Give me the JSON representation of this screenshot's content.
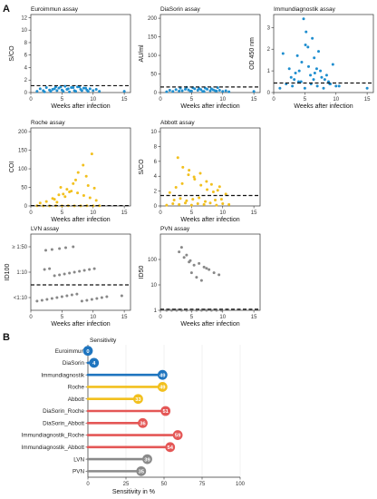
{
  "figure": {
    "panel_a_label": "A",
    "panel_b_label": "B"
  },
  "chart_data": [
    {
      "type": "scatter",
      "title": "Euroimmun assay",
      "xlabel": "Weeks after infection",
      "ylabel": "S/CO",
      "xlim": [
        0,
        16
      ],
      "ylim": [
        0,
        12.5
      ],
      "xticks": [
        0,
        5,
        10,
        15
      ],
      "yticks": [
        0,
        2,
        4,
        6,
        8,
        10,
        12
      ],
      "threshold": 1.1,
      "color": "#1f8ecf",
      "x": [
        1.0,
        1.5,
        2.0,
        2.5,
        3.0,
        3.5,
        4.0,
        4.5,
        5.0,
        5.5,
        6.0,
        6.5,
        7.0,
        7.5,
        8.0,
        8.5,
        9.0,
        9.5,
        10.0,
        10.5,
        11.0,
        2.2,
        3.2,
        4.2,
        5.2,
        6.2,
        7.2,
        8.2,
        9.2,
        4.8,
        6.8,
        8.8,
        3.8,
        5.8,
        7.8,
        15.0
      ],
      "y": [
        0.2,
        0.6,
        0.3,
        0.8,
        0.4,
        0.5,
        0.9,
        0.7,
        0.4,
        1.0,
        0.6,
        0.8,
        0.3,
        0.9,
        0.5,
        0.7,
        0.4,
        0.6,
        0.3,
        0.5,
        0.2,
        0.1,
        0.2,
        0.3,
        0.2,
        0.1,
        0.2,
        0.3,
        0.2,
        0.9,
        0.8,
        0.7,
        0.6,
        0.5,
        0.9,
        0.2
      ]
    },
    {
      "type": "scatter",
      "title": "DiaSorin assay",
      "xlabel": "Weeks after infection",
      "ylabel": "AU/ml",
      "xlim": [
        0,
        16
      ],
      "ylim": [
        0,
        210
      ],
      "xticks": [
        0,
        5,
        10,
        15
      ],
      "yticks": [
        0,
        50,
        100,
        150,
        200
      ],
      "threshold": 15,
      "color": "#1f8ecf",
      "x": [
        1.0,
        1.5,
        2.0,
        2.5,
        3.0,
        3.5,
        4.0,
        4.5,
        5.0,
        5.5,
        6.0,
        6.5,
        7.0,
        7.5,
        8.0,
        8.5,
        9.0,
        9.5,
        10.0,
        10.5,
        11.0,
        3.2,
        4.2,
        5.2,
        6.2,
        7.2,
        8.2,
        9.2,
        4.8,
        6.8,
        8.8,
        15.0
      ],
      "y": [
        2,
        6,
        3,
        8,
        4,
        5,
        9,
        7,
        4,
        10,
        6,
        8,
        3,
        9,
        5,
        7,
        4,
        6,
        3,
        5,
        2,
        12,
        14,
        13,
        11,
        12,
        10,
        13,
        4,
        3,
        5,
        3
      ]
    },
    {
      "type": "scatter",
      "title": "Immundiagnostik assay",
      "xlabel": "Weeks after infection",
      "ylabel": "OD 450 nm",
      "xlim": [
        0,
        16
      ],
      "ylim": [
        0,
        3.6
      ],
      "xticks": [
        0,
        5,
        10,
        15
      ],
      "yticks": [
        0,
        1,
        2,
        3
      ],
      "threshold": 0.44,
      "color": "#1f8ecf",
      "x": [
        1.0,
        2.0,
        3.0,
        4.0,
        5.0,
        6.0,
        7.0,
        8.0,
        9.0,
        10.0,
        1.5,
        2.5,
        3.5,
        4.5,
        5.5,
        6.5,
        7.5,
        8.5,
        9.5,
        4.8,
        5.2,
        6.2,
        3.8,
        7.2,
        2.8,
        5.6,
        6.6,
        8.2,
        4.4,
        5.9,
        7.7,
        9.1,
        3.3,
        6.9,
        8.8,
        5.1,
        4.1,
        6.4,
        10.5,
        15.0
      ],
      "y": [
        0.2,
        0.4,
        0.3,
        0.5,
        0.2,
        0.4,
        0.3,
        0.2,
        0.4,
        0.3,
        1.8,
        1.1,
        0.9,
        1.4,
        2.1,
        1.6,
        1.0,
        0.8,
        1.3,
        3.4,
        2.8,
        2.5,
        1.7,
        1.9,
        0.7,
        1.2,
        0.9,
        0.6,
        0.5,
        0.8,
        0.7,
        0.4,
        0.6,
        1.1,
        0.5,
        2.2,
        1.0,
        0.6,
        0.3,
        0.2
      ]
    },
    {
      "type": "scatter",
      "title": "Roche assay",
      "xlabel": "Weeks after infection",
      "ylabel": "COI",
      "xlim": [
        0,
        16
      ],
      "ylim": [
        0,
        210
      ],
      "xticks": [
        0,
        5,
        10,
        15
      ],
      "yticks": [
        0,
        50,
        100,
        150,
        200
      ],
      "threshold": 1,
      "color": "#f2c01e",
      "x": [
        1.0,
        2.0,
        3.0,
        4.0,
        5.0,
        6.0,
        7.0,
        8.0,
        9.0,
        10.0,
        11.0,
        1.5,
        2.5,
        3.5,
        4.5,
        5.5,
        6.5,
        7.5,
        8.5,
        9.5,
        10.5,
        9.8,
        7.6,
        8.4,
        6.8,
        5.8,
        4.8,
        3.8,
        7.2,
        8.9,
        6.2,
        5.2,
        9.2,
        10.2,
        4.2
      ],
      "y": [
        0.5,
        0.3,
        0.4,
        0.6,
        0.2,
        0.5,
        0.3,
        0.4,
        0.6,
        0.3,
        0.5,
        8,
        12,
        20,
        30,
        25,
        40,
        35,
        28,
        22,
        15,
        140,
        90,
        110,
        60,
        45,
        50,
        18,
        70,
        80,
        38,
        32,
        55,
        48,
        10
      ]
    },
    {
      "type": "scatter",
      "title": "Abbott assay",
      "xlabel": "Weeks after infection",
      "ylabel": "S/CO",
      "xlim": [
        0,
        16
      ],
      "ylim": [
        0,
        10.5
      ],
      "xticks": [
        0,
        5,
        10,
        15
      ],
      "yticks": [
        0,
        2,
        4,
        6,
        8,
        10
      ],
      "threshold": 1.4,
      "color": "#f2c01e",
      "x": [
        1.0,
        2.0,
        3.0,
        4.0,
        5.0,
        6.0,
        7.0,
        8.0,
        9.0,
        10.0,
        11.0,
        1.5,
        2.5,
        3.5,
        4.5,
        5.5,
        6.5,
        7.5,
        8.5,
        9.5,
        10.5,
        2.8,
        3.6,
        4.6,
        5.4,
        6.4,
        7.4,
        8.2,
        9.2,
        2.2,
        3.2,
        4.2,
        5.2,
        6.2,
        7.2,
        8.8,
        9.8
      ],
      "y": [
        0.1,
        0.3,
        0.2,
        0.4,
        0.1,
        0.3,
        0.2,
        0.4,
        0.1,
        0.3,
        0.2,
        1.8,
        2.5,
        3.0,
        4.2,
        3.6,
        2.8,
        2.2,
        1.9,
        2.6,
        1.6,
        6.5,
        5.2,
        4.8,
        3.9,
        4.4,
        3.3,
        2.9,
        2.1,
        0.8,
        1.0,
        0.7,
        0.9,
        1.1,
        0.6,
        0.8,
        0.9
      ]
    },
    {
      "type": "scatter",
      "title": "LVN assay",
      "xlabel": "Weeks after infection",
      "ylabel": "ID100",
      "xlim": [
        0,
        16
      ],
      "categories": [
        "<1:10",
        "1:10",
        "≥ 1:50"
      ],
      "xticks": [
        0,
        5,
        10,
        15
      ],
      "threshold_level": 0.5,
      "color": "#888888",
      "x": [
        1.0,
        1.8,
        2.6,
        3.4,
        4.2,
        5.0,
        5.8,
        6.6,
        7.4,
        8.2,
        9.0,
        9.8,
        10.6,
        11.4,
        12.2,
        14.6,
        2.2,
        3.0,
        3.8,
        4.6,
        5.4,
        6.2,
        7.0,
        7.8,
        8.6,
        9.4,
        10.2,
        2.4,
        3.4,
        4.6,
        5.6,
        6.8
      ],
      "level": [
        0,
        0,
        0,
        0,
        0,
        0,
        0,
        0,
        0,
        0,
        0,
        0,
        0,
        0,
        0,
        0,
        1,
        1,
        1,
        1,
        1,
        1,
        1,
        1,
        1,
        1,
        1,
        2,
        2,
        2,
        2,
        2
      ]
    },
    {
      "type": "scatter",
      "title": "PVN assay",
      "xlabel": "Weeks after infection",
      "ylabel": "ID50",
      "xlim": [
        0,
        16
      ],
      "yscale": "log",
      "ylim": [
        1,
        1000
      ],
      "yticks": [
        1,
        10,
        100
      ],
      "xticks": [
        0,
        5,
        10,
        15
      ],
      "threshold": 1.1,
      "color": "#888888",
      "x": [
        1.0,
        1.8,
        2.6,
        3.4,
        4.2,
        5.0,
        5.8,
        6.6,
        7.4,
        8.2,
        9.0,
        9.8,
        3.0,
        3.8,
        4.6,
        5.4,
        6.2,
        7.0,
        7.8,
        8.6,
        9.4,
        4.2,
        5.0,
        5.8,
        6.6,
        4.8,
        3.4,
        7.4
      ],
      "y": [
        1,
        1,
        1,
        1,
        1,
        1,
        1,
        1,
        1,
        1,
        1,
        1,
        200,
        120,
        80,
        60,
        70,
        50,
        40,
        30,
        25,
        150,
        30,
        20,
        15,
        90,
        300,
        45
      ]
    },
    {
      "type": "bar",
      "subtype": "lollipop",
      "title": "Sensitivity",
      "xlabel": "Sensitivity in %",
      "xlim": [
        0,
        100
      ],
      "xticks": [
        0,
        25,
        50,
        75,
        100
      ],
      "categories": [
        "Euroimmun",
        "DiaSorin",
        "Immundiagnostik",
        "Roche",
        "Abbott",
        "DiaSorin_Roche",
        "DiaSorin_Abbott",
        "Immundiagnostik_Roche",
        "Immundiagnostik_Abbott",
        "LVN",
        "PVN"
      ],
      "values": [
        0,
        4,
        49,
        49,
        33,
        51,
        36,
        59,
        54,
        39,
        35
      ],
      "colors": [
        "#1f75bf",
        "#1f75bf",
        "#1f75bf",
        "#f2c01e",
        "#f2c01e",
        "#e45756",
        "#e45756",
        "#e45756",
        "#e45756",
        "#8a8a8a",
        "#8a8a8a"
      ]
    }
  ]
}
